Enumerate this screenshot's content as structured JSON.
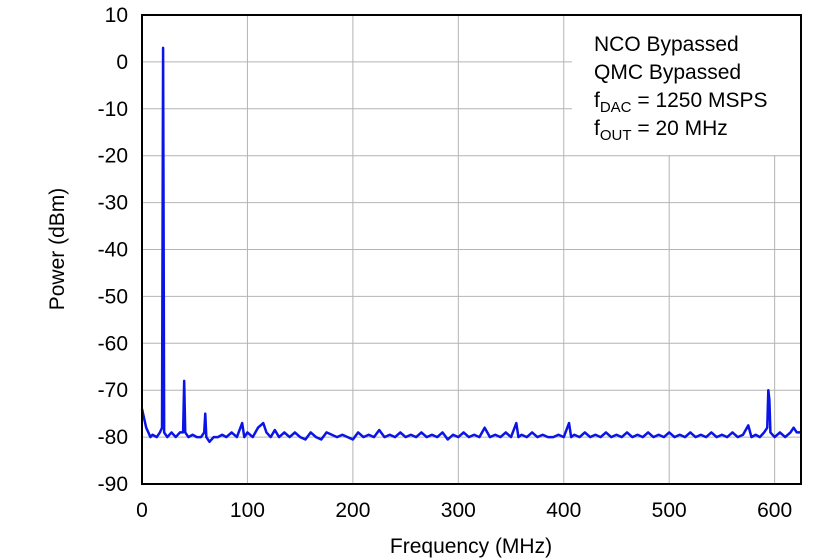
{
  "chart_data": {
    "type": "line",
    "x_label": "Frequency (MHz)",
    "y_label": "Power (dBm)",
    "annotations": [
      {
        "text": "NCO Bypassed"
      },
      {
        "text": "QMC Bypassed"
      },
      {
        "text": "f",
        "sub": "DAC",
        "rest": " = 1250 MSPS"
      },
      {
        "text": "f",
        "sub": "OUT",
        "rest": " = 20 MHz"
      }
    ],
    "xlim": [
      0,
      625
    ],
    "xticks": [
      0,
      100,
      200,
      300,
      400,
      500,
      600
    ],
    "ylim": [
      -90,
      10
    ],
    "yticks": [
      -90,
      -80,
      -70,
      -60,
      -50,
      -40,
      -30,
      -20,
      -10,
      0,
      10
    ],
    "grid": true,
    "color": "#0a14e6",
    "x": [
      0,
      2,
      4,
      6,
      8,
      10,
      14,
      17,
      19,
      19.5,
      20,
      20.5,
      21,
      24,
      28,
      32,
      36,
      39,
      40,
      41,
      44,
      48,
      52,
      56,
      59,
      60,
      61,
      64,
      68,
      72,
      76,
      80,
      85,
      90,
      95,
      97,
      100,
      105,
      110,
      115,
      118,
      122,
      126,
      130,
      135,
      140,
      145,
      150,
      155,
      160,
      165,
      170,
      175,
      180,
      185,
      190,
      195,
      200,
      205,
      210,
      215,
      220,
      225,
      230,
      235,
      240,
      245,
      250,
      255,
      260,
      265,
      270,
      275,
      280,
      285,
      290,
      295,
      300,
      305,
      310,
      315,
      320,
      325,
      330,
      335,
      340,
      345,
      350,
      355,
      357,
      360,
      365,
      370,
      375,
      380,
      385,
      390,
      395,
      400,
      405,
      407,
      410,
      415,
      420,
      425,
      430,
      435,
      440,
      445,
      450,
      455,
      460,
      465,
      470,
      475,
      480,
      485,
      490,
      495,
      500,
      505,
      510,
      515,
      520,
      525,
      530,
      535,
      540,
      545,
      550,
      555,
      560,
      565,
      570,
      575,
      578,
      582,
      586,
      590,
      593,
      594,
      595,
      596,
      600,
      605,
      610,
      615,
      618,
      621,
      625
    ],
    "values": [
      -74,
      -76,
      -78,
      -79,
      -80,
      -79.5,
      -80,
      -79,
      -78,
      -37,
      3,
      -37,
      -79,
      -80,
      -79,
      -80,
      -79,
      -79,
      -68,
      -79,
      -80,
      -79.5,
      -80,
      -80,
      -79,
      -75,
      -80,
      -81,
      -80,
      -80,
      -79.5,
      -80,
      -79,
      -80,
      -77,
      -80,
      -79,
      -80,
      -78,
      -77,
      -79,
      -80,
      -78.5,
      -80,
      -79,
      -80,
      -79,
      -80,
      -80.5,
      -79,
      -80,
      -80.5,
      -79,
      -79.5,
      -80,
      -79.5,
      -80,
      -80.5,
      -79,
      -80,
      -79.5,
      -80,
      -78.5,
      -80,
      -79.5,
      -80,
      -79,
      -80,
      -79.5,
      -80,
      -79,
      -80,
      -79.5,
      -80,
      -79,
      -80.5,
      -79.5,
      -80,
      -79,
      -80,
      -79.5,
      -80,
      -78,
      -80,
      -79.5,
      -80,
      -79,
      -80,
      -77,
      -80,
      -79.5,
      -80,
      -79,
      -80,
      -79.5,
      -80,
      -80,
      -79.5,
      -80,
      -77,
      -80,
      -79.5,
      -80,
      -79,
      -80,
      -79.5,
      -80,
      -79,
      -80,
      -79.5,
      -80,
      -79,
      -80,
      -79.5,
      -80,
      -79,
      -80,
      -79.5,
      -80,
      -79,
      -80,
      -79.5,
      -80,
      -79,
      -80,
      -79.5,
      -80,
      -79,
      -80,
      -79.5,
      -80,
      -79,
      -80,
      -79.5,
      -77.5,
      -80,
      -79.5,
      -80,
      -79,
      -78,
      -70,
      -72,
      -79,
      -80,
      -79,
      -80,
      -79,
      -78,
      -79,
      -79
    ]
  }
}
